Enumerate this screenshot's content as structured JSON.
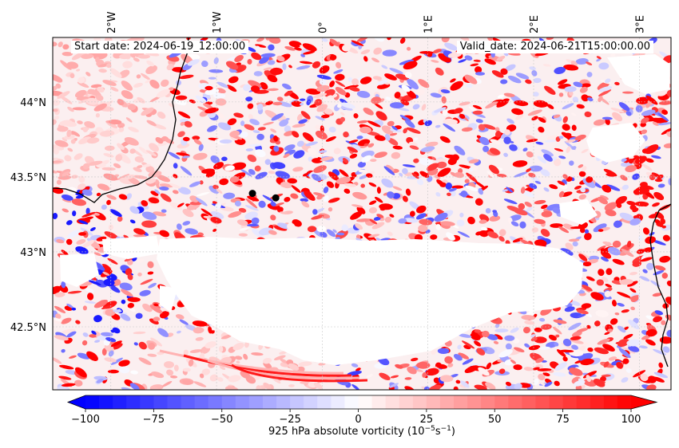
{
  "chart_data": {
    "type": "heatmap",
    "field": "925 hPa absolute vorticity",
    "start_date": "Start date: 2024-06-19_12:00:00",
    "valid_date": "Valid_date: 2024-06-21T15:00:00.00",
    "colorbar": {
      "label": "925 hPa absolute vorticity (10$^{-5}$s$^{-1}$)",
      "label_main": "925 hPa absolute vorticity (10",
      "label_exp1": "−5",
      "label_mid": "s",
      "label_exp2": "−1",
      "label_end": ")",
      "vmin": -100,
      "vmax": 100,
      "levels": 40,
      "colormap": "bwr",
      "extend": "both",
      "ticks": [
        {
          "value": -100,
          "label": "−100"
        },
        {
          "value": -75,
          "label": "−75"
        },
        {
          "value": -50,
          "label": "−50"
        },
        {
          "value": -25,
          "label": "−25"
        },
        {
          "value": 0,
          "label": "0"
        },
        {
          "value": 25,
          "label": "25"
        },
        {
          "value": 50,
          "label": "50"
        },
        {
          "value": 75,
          "label": "75"
        },
        {
          "value": 100,
          "label": "100"
        }
      ]
    },
    "lon_ticks": [
      {
        "value": -2,
        "label": "2°W"
      },
      {
        "value": -1,
        "label": "1°W"
      },
      {
        "value": 0,
        "label": "0°"
      },
      {
        "value": 1,
        "label": "1°E"
      },
      {
        "value": 2,
        "label": "2°E"
      },
      {
        "value": 3,
        "label": "3°E"
      }
    ],
    "lat_ticks": [
      {
        "value": 44,
        "label": "44°N"
      },
      {
        "value": 43.5,
        "label": "43.5°N"
      },
      {
        "value": 43,
        "label": "43°N"
      },
      {
        "value": 42.5,
        "label": "42.5°N"
      }
    ],
    "extent": {
      "lon": [
        -2.55,
        3.3
      ],
      "lat": [
        42.08,
        44.43
      ]
    },
    "markers": [
      {
        "lon": -0.66,
        "lat": 43.39
      },
      {
        "lon": -0.44,
        "lat": 43.36
      }
    ]
  },
  "colors": {
    "neg": "#0000ff",
    "pos": "#ff0000",
    "coast": "#000000",
    "grid": "#c8c8c8"
  }
}
